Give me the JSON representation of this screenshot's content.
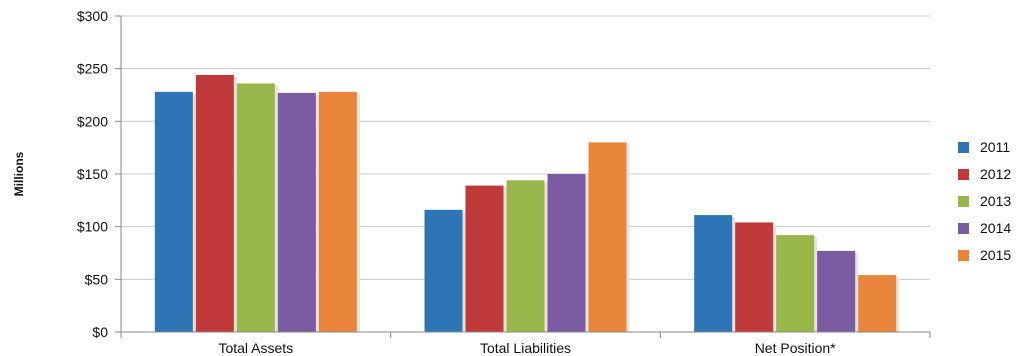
{
  "chart_data": {
    "type": "bar",
    "categories": [
      "Total Assets",
      "Total Liabilities",
      "Net Position*"
    ],
    "series": [
      {
        "name": "2011",
        "color": "#2e75b6",
        "values": [
          228,
          116,
          111
        ]
      },
      {
        "name": "2012",
        "color": "#c0393b",
        "values": [
          244,
          139,
          104
        ]
      },
      {
        "name": "2013",
        "color": "#97b74b",
        "values": [
          236,
          144,
          92
        ]
      },
      {
        "name": "2014",
        "color": "#7a5aa0",
        "values": [
          227,
          150,
          77
        ]
      },
      {
        "name": "2015",
        "color": "#e8853a",
        "values": [
          228,
          180,
          54
        ]
      }
    ],
    "ylim": [
      0,
      300
    ],
    "yticks": [
      0,
      50,
      100,
      150,
      200,
      250,
      300
    ],
    "ytick_labels": [
      "$0",
      "$50",
      "$100",
      "$150",
      "$200",
      "$250",
      "$300"
    ],
    "ylabel": "Millions",
    "xlabel": "",
    "title": "",
    "grid": true,
    "legend_position": "right"
  }
}
